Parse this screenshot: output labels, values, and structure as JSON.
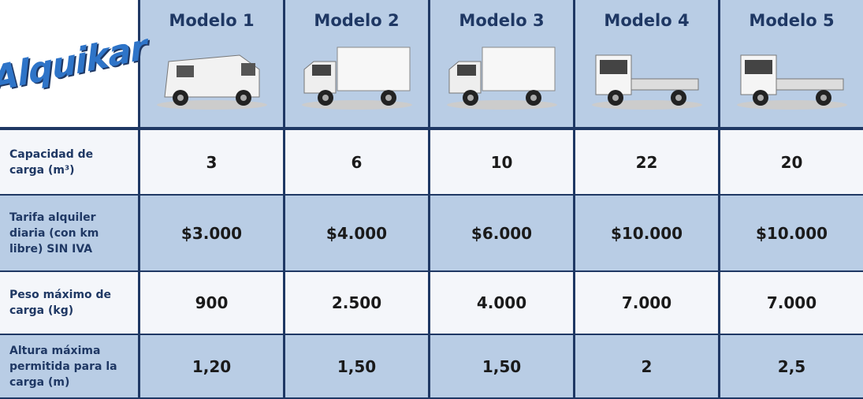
{
  "header": {
    "logo": "Alquikar"
  },
  "table": {
    "columns": [
      "Modelo 1",
      "Modelo 2",
      "Modelo 3",
      "Modelo 4",
      "Modelo 5"
    ],
    "rows": [
      [
        "Capacidad de carga (m³)",
        "3",
        "6",
        "10",
        "22",
        "20"
      ],
      [
        "Tarifa alquiler diaria (con km libre) SIN IVA",
        "$3.000",
        "$4.000",
        "$6.000",
        "$10.000",
        "$10.000"
      ],
      [
        "Peso máximo de carga (kg)",
        "900",
        "2.500",
        "4.000",
        "7.000",
        "7.000"
      ],
      [
        "Altura máxima permitida para la carga (m)",
        "1,20",
        "1,50",
        "1,50",
        "2",
        "2,5"
      ]
    ]
  }
}
